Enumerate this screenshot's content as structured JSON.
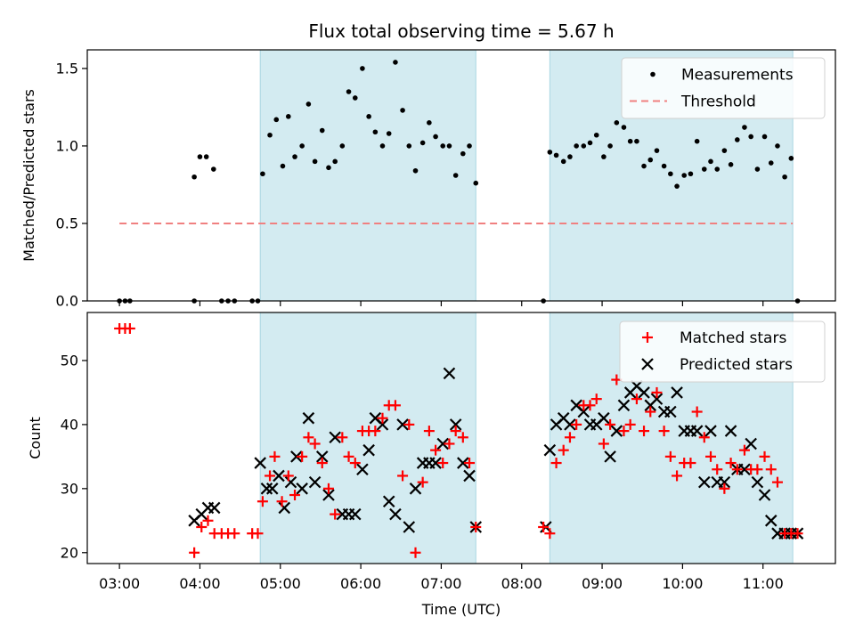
{
  "title": "Flux total observing time = 5.67 h",
  "chart_data": [
    {
      "type": "scatter",
      "panel": "top",
      "ylabel": "Matched/Predicted stars",
      "ylim": [
        0,
        1.62
      ],
      "yticks": [
        0.0,
        0.5,
        1.0,
        1.5
      ],
      "ytick_labels": [
        "0.0",
        "0.5",
        "1.0",
        "1.5"
      ],
      "xlim_hours": [
        2.6,
        11.9
      ],
      "shaded_intervals_hours": [
        [
          4.75,
          7.43
        ],
        [
          8.35,
          11.37
        ]
      ],
      "shade_color": "#d3ebf1",
      "legend_position": "upper-right",
      "series": [
        {
          "name": "Measurements",
          "marker": "dot",
          "color": "#000000",
          "x": [
            3.0,
            3.07,
            3.13,
            3.93,
            3.93,
            4.0,
            4.08,
            4.17,
            4.27,
            4.35,
            4.43,
            4.65,
            4.72,
            4.78,
            4.87,
            4.95,
            5.03,
            5.1,
            5.18,
            5.27,
            5.35,
            5.43,
            5.52,
            5.6,
            5.68,
            5.77,
            5.85,
            5.93,
            6.02,
            6.1,
            6.18,
            6.27,
            6.35,
            6.43,
            6.52,
            6.6,
            6.68,
            6.77,
            6.85,
            6.93,
            7.02,
            7.1,
            7.18,
            7.27,
            7.35,
            7.43,
            8.27,
            8.35,
            8.43,
            8.52,
            8.6,
            8.68,
            8.77,
            8.85,
            8.93,
            9.02,
            9.1,
            9.18,
            9.27,
            9.35,
            9.43,
            9.52,
            9.6,
            9.68,
            9.77,
            9.85,
            9.93,
            10.02,
            10.1,
            10.18,
            10.27,
            10.35,
            10.43,
            10.52,
            10.6,
            10.68,
            10.77,
            10.85,
            10.93,
            11.02,
            11.1,
            11.18,
            11.27,
            11.35,
            11.43
          ],
          "y": [
            0.0,
            0.0,
            0.0,
            0.8,
            0.0,
            0.93,
            0.93,
            0.85,
            0.0,
            0.0,
            0.0,
            0.0,
            0.0,
            0.82,
            1.07,
            1.17,
            0.87,
            1.19,
            0.93,
            1.0,
            1.27,
            0.9,
            1.1,
            0.86,
            0.9,
            1.0,
            1.35,
            1.31,
            1.5,
            1.19,
            1.09,
            1.0,
            1.08,
            1.54,
            1.23,
            1.0,
            0.84,
            1.02,
            1.15,
            1.06,
            1.0,
            1.0,
            0.81,
            0.95,
            1.0,
            0.76,
            0.0,
            0.96,
            0.94,
            0.9,
            0.93,
            1.0,
            1.0,
            1.02,
            1.07,
            0.93,
            1.0,
            1.15,
            1.12,
            1.03,
            1.03,
            0.87,
            0.91,
            0.97,
            0.87,
            0.82,
            0.74,
            0.81,
            0.82,
            1.03,
            0.85,
            0.9,
            0.85,
            0.97,
            0.88,
            1.04,
            1.12,
            1.06,
            0.85,
            1.06,
            0.89,
            1.0,
            0.8,
            0.92,
            0.0
          ]
        },
        {
          "name": "Threshold",
          "style": "dashed",
          "color": "#f08080",
          "x": [
            3.0,
            11.37
          ],
          "y": [
            0.5,
            0.5
          ]
        }
      ]
    },
    {
      "type": "scatter",
      "panel": "bottom",
      "xlabel": "Time (UTC)",
      "ylabel": "Count",
      "ylim": [
        18.3,
        57.5
      ],
      "yticks": [
        20,
        30,
        40,
        50
      ],
      "ytick_labels": [
        "20",
        "30",
        "40",
        "50"
      ],
      "xlim_hours": [
        2.6,
        11.9
      ],
      "xticks_hours": [
        3,
        4,
        5,
        6,
        7,
        8,
        9,
        10,
        11
      ],
      "xtick_labels": [
        "03:00",
        "04:00",
        "05:00",
        "06:00",
        "07:00",
        "08:00",
        "09:00",
        "10:00",
        "11:00"
      ],
      "shaded_intervals_hours": [
        [
          4.75,
          7.43
        ],
        [
          8.35,
          11.37
        ]
      ],
      "legend_position": "upper-right",
      "series": [
        {
          "name": "Matched stars",
          "marker": "plus",
          "color": "#ff0000",
          "x": [
            3.0,
            3.07,
            3.13,
            3.93,
            4.02,
            4.1,
            4.18,
            4.27,
            4.35,
            4.43,
            4.65,
            4.72,
            4.78,
            4.87,
            4.93,
            5.02,
            5.1,
            5.18,
            5.27,
            5.35,
            5.43,
            5.52,
            5.6,
            5.68,
            5.77,
            5.85,
            5.93,
            6.02,
            6.1,
            6.18,
            6.27,
            6.35,
            6.43,
            6.52,
            6.6,
            6.68,
            6.77,
            6.85,
            6.93,
            7.02,
            7.1,
            7.18,
            7.27,
            7.35,
            7.43,
            8.27,
            8.35,
            8.43,
            8.52,
            8.6,
            8.68,
            8.77,
            8.85,
            8.93,
            9.02,
            9.1,
            9.18,
            9.27,
            9.35,
            9.43,
            9.52,
            9.6,
            9.68,
            9.77,
            9.85,
            9.93,
            10.02,
            10.1,
            10.18,
            10.27,
            10.35,
            10.43,
            10.52,
            10.6,
            10.68,
            10.77,
            10.85,
            10.93,
            11.02,
            11.1,
            11.18,
            11.27,
            11.35,
            11.43
          ],
          "y": [
            55,
            55,
            55,
            20,
            24,
            25,
            23,
            23,
            23,
            23,
            23,
            23,
            28,
            32,
            35,
            28,
            32,
            29,
            35,
            38,
            37,
            34,
            30,
            26,
            38,
            35,
            34,
            39,
            39,
            39,
            41,
            43,
            43,
            32,
            40,
            20,
            31,
            39,
            36,
            34,
            37,
            39,
            38,
            34,
            24,
            24,
            23,
            34,
            36,
            38,
            40,
            43,
            43,
            44,
            37,
            40,
            47,
            39,
            40,
            44,
            39,
            42,
            45,
            39,
            35,
            32,
            34,
            34,
            42,
            38,
            35,
            33,
            30,
            34,
            33,
            36,
            33,
            33,
            35,
            33,
            31,
            23,
            23,
            23
          ]
        },
        {
          "name": "Predicted stars",
          "marker": "x",
          "color": "#000000",
          "x": [
            3.93,
            4.02,
            4.1,
            4.18,
            4.75,
            4.83,
            4.9,
            4.98,
            5.05,
            5.13,
            5.2,
            5.27,
            5.35,
            5.43,
            5.52,
            5.6,
            5.68,
            5.77,
            5.85,
            5.93,
            6.02,
            6.1,
            6.18,
            6.27,
            6.35,
            6.43,
            6.52,
            6.6,
            6.68,
            6.77,
            6.85,
            6.93,
            7.02,
            7.1,
            7.18,
            7.27,
            7.35,
            7.43,
            8.3,
            8.35,
            8.43,
            8.52,
            8.6,
            8.68,
            8.77,
            8.85,
            8.93,
            9.02,
            9.1,
            9.18,
            9.27,
            9.35,
            9.43,
            9.52,
            9.6,
            9.68,
            9.77,
            9.85,
            9.93,
            10.02,
            10.1,
            10.18,
            10.27,
            10.35,
            10.43,
            10.52,
            10.6,
            10.68,
            10.77,
            10.85,
            10.93,
            11.02,
            11.1,
            11.18,
            11.27,
            11.35,
            11.43
          ],
          "y": [
            25,
            26,
            27,
            27,
            34,
            30,
            30,
            32,
            27,
            31,
            35,
            30,
            41,
            31,
            35,
            29,
            38,
            26,
            26,
            26,
            33,
            36,
            41,
            40,
            28,
            26,
            40,
            24,
            30,
            34,
            34,
            34,
            37,
            48,
            40,
            34,
            32,
            24,
            24,
            36,
            40,
            41,
            40,
            43,
            42,
            40,
            40,
            41,
            35,
            39,
            43,
            45,
            46,
            45,
            43,
            44,
            42,
            42,
            45,
            39,
            39,
            39,
            31,
            39,
            31,
            31,
            39,
            33,
            33,
            37,
            31,
            29,
            25,
            23,
            23,
            23,
            23
          ]
        }
      ]
    }
  ]
}
